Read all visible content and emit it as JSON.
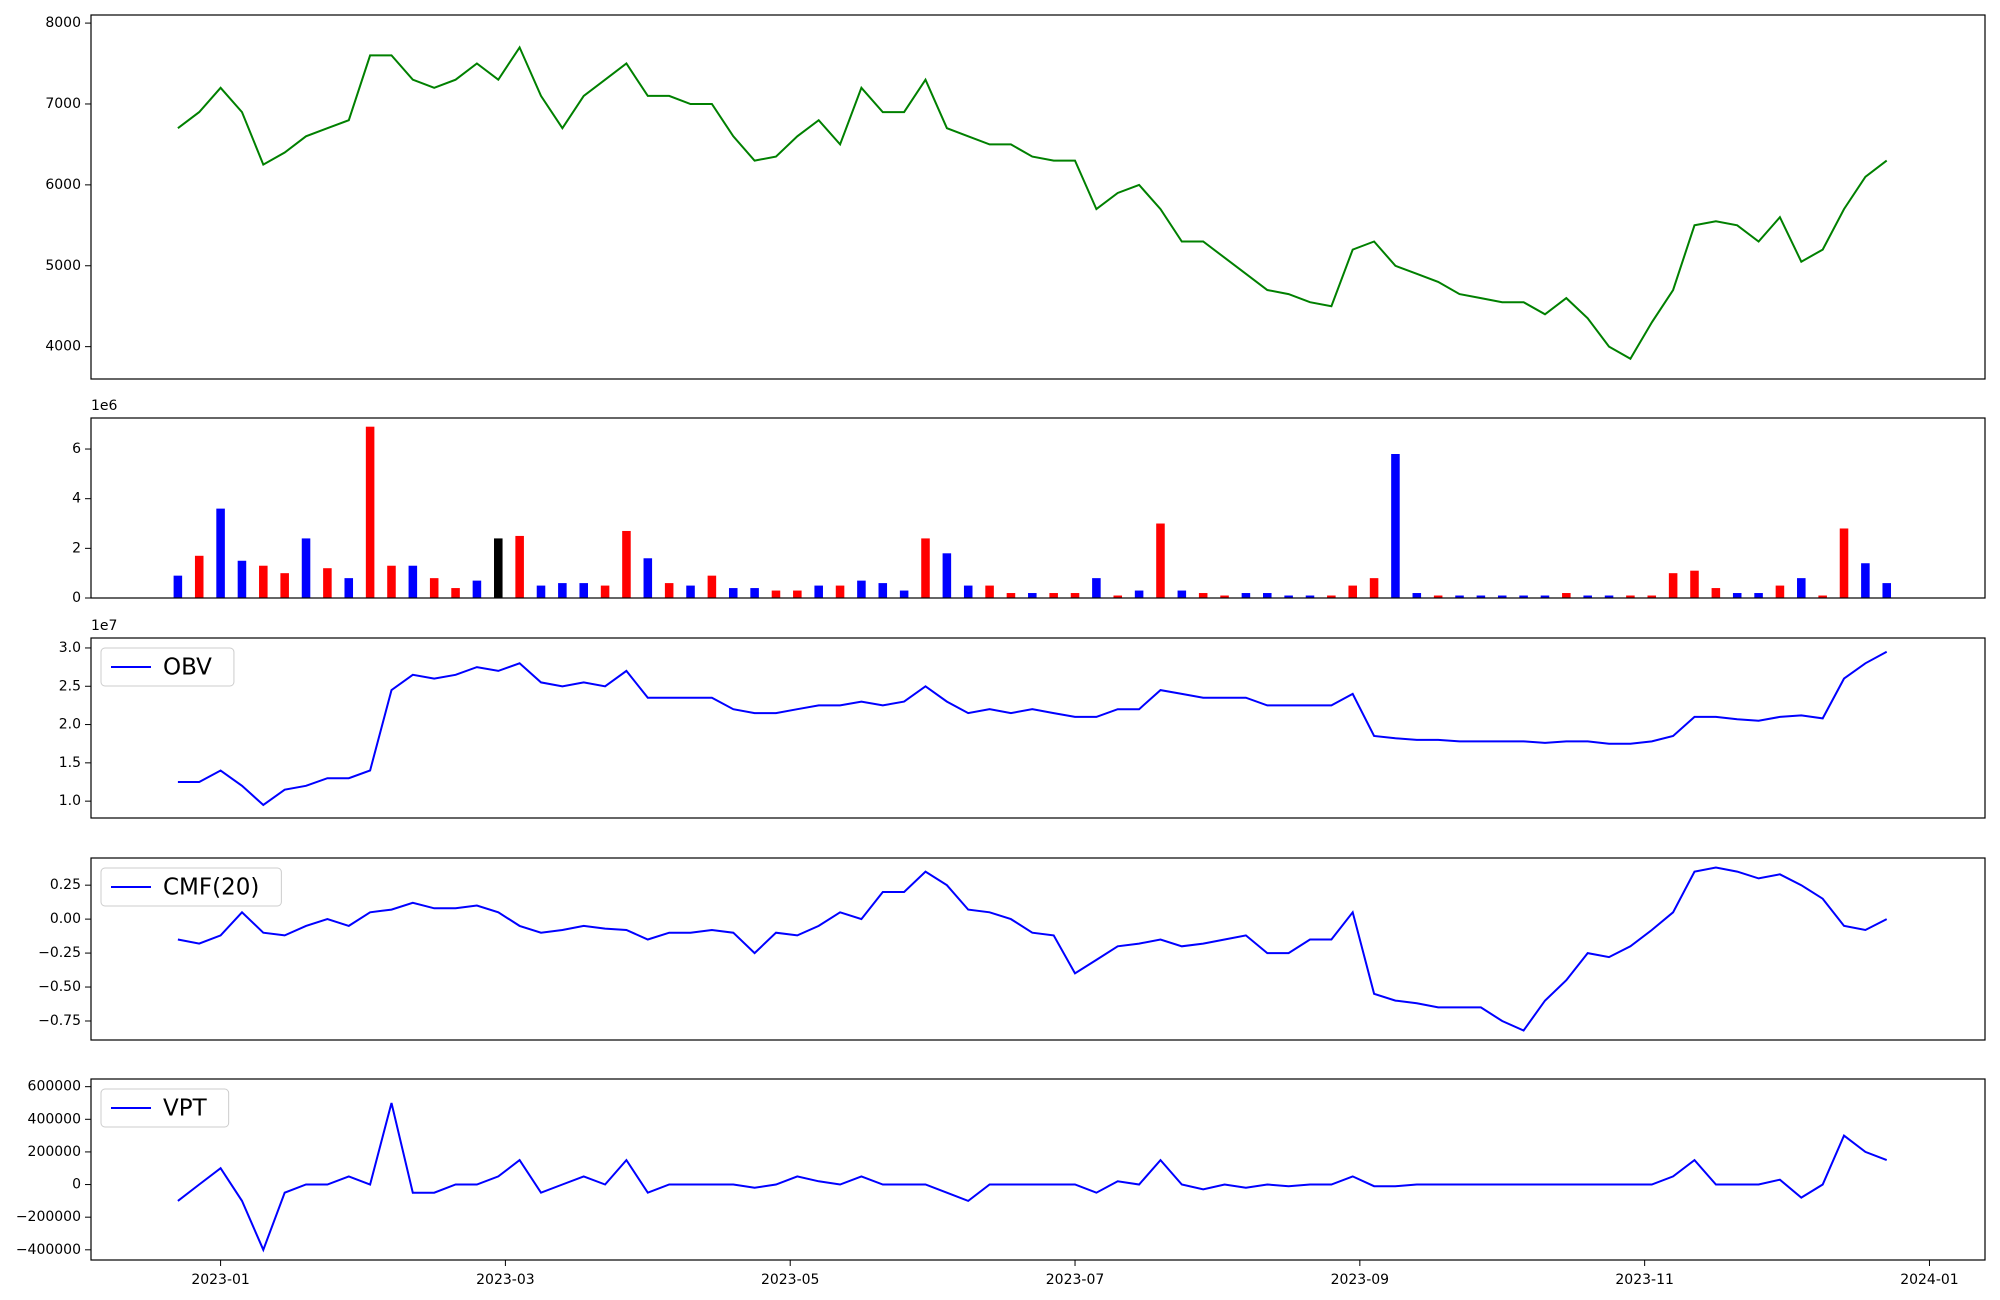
{
  "chart_data": [
    {
      "type": "line",
      "color": "green",
      "x": [
        -0.3,
        -0.15,
        0,
        0.15,
        0.3,
        0.45,
        0.6,
        0.75,
        0.9,
        1.05,
        1.2,
        1.35,
        1.5,
        1.65,
        1.8,
        1.95,
        2.1,
        2.25,
        2.4,
        2.55,
        2.7,
        2.85,
        3,
        3.15,
        3.3,
        3.45,
        3.6,
        3.75,
        3.9,
        4.05,
        4.2,
        4.35,
        4.5,
        4.65,
        4.8,
        4.95,
        5.1,
        5.25,
        5.4,
        5.55,
        5.7,
        5.85,
        6,
        6.15,
        6.3,
        6.45,
        6.6,
        6.75,
        6.9,
        7.05,
        7.2,
        7.35,
        7.5,
        7.65,
        7.8,
        7.95,
        8.1,
        8.25,
        8.4,
        8.55,
        8.7,
        8.85,
        9,
        9.15,
        9.3,
        9.45,
        9.6,
        9.75,
        9.9,
        10.05,
        10.2,
        10.35,
        10.5,
        10.65,
        10.8,
        10.95,
        11.1,
        11.25,
        11.4,
        11.55,
        11.7
      ],
      "values": [
        6700,
        6900,
        7200,
        6900,
        6250,
        6400,
        6600,
        6700,
        6800,
        7600,
        7600,
        7300,
        7200,
        7300,
        7500,
        7300,
        7700,
        7100,
        6700,
        7100,
        7300,
        7500,
        7100,
        7100,
        7000,
        7000,
        6600,
        6300,
        6350,
        6600,
        6800,
        6500,
        7200,
        6900,
        6900,
        7300,
        6700,
        6600,
        6500,
        6500,
        6350,
        6300,
        6300,
        5700,
        5900,
        6000,
        5700,
        5300,
        5300,
        5100,
        4900,
        4700,
        4650,
        4550,
        4500,
        5200,
        5300,
        5000,
        4900,
        4800,
        4650,
        4600,
        4550,
        4550,
        4400,
        4600,
        4350,
        4000,
        3850,
        4300,
        4700,
        5500,
        5550,
        5500,
        5300,
        5600,
        5050,
        5200,
        5700,
        6100,
        6300
      ],
      "xlim": [
        -0.91,
        12.39
      ],
      "ylim": [
        3600,
        8100
      ],
      "yticks": [
        4000,
        5000,
        6000,
        7000,
        8000
      ]
    },
    {
      "type": "bar",
      "offset_label": "1e6",
      "x": [
        -0.3,
        -0.15,
        0,
        0.15,
        0.3,
        0.45,
        0.6,
        0.75,
        0.9,
        1.05,
        1.2,
        1.35,
        1.5,
        1.65,
        1.8,
        1.95,
        2.1,
        2.25,
        2.4,
        2.55,
        2.7,
        2.85,
        3,
        3.15,
        3.3,
        3.45,
        3.6,
        3.75,
        3.9,
        4.05,
        4.2,
        4.35,
        4.5,
        4.65,
        4.8,
        4.95,
        5.1,
        5.25,
        5.4,
        5.55,
        5.7,
        5.85,
        6,
        6.15,
        6.3,
        6.45,
        6.6,
        6.75,
        6.9,
        7.05,
        7.2,
        7.35,
        7.5,
        7.65,
        7.8,
        7.95,
        8.1,
        8.25,
        8.4,
        8.55,
        8.7,
        8.85,
        9,
        9.15,
        9.3,
        9.45,
        9.6,
        9.75,
        9.9,
        10.05,
        10.2,
        10.35,
        10.5,
        10.65,
        10.8,
        10.95,
        11.1,
        11.25,
        11.4,
        11.55,
        11.7
      ],
      "values": [
        0.9,
        1.7,
        3.6,
        1.5,
        1.3,
        1.0,
        2.4,
        1.2,
        0.8,
        6.9,
        1.3,
        1.3,
        0.8,
        0.4,
        0.7,
        2.4,
        2.5,
        0.5,
        0.6,
        0.6,
        0.5,
        2.7,
        1.6,
        0.6,
        0.5,
        0.9,
        0.4,
        0.4,
        0.3,
        0.3,
        0.5,
        0.5,
        0.7,
        0.6,
        0.3,
        2.4,
        1.8,
        0.5,
        0.5,
        0.2,
        0.2,
        0.2,
        0.2,
        0.8,
        0.1,
        0.3,
        3.0,
        0.3,
        0.2,
        0.1,
        0.2,
        0.2,
        0.1,
        0.1,
        0.1,
        0.5,
        0.8,
        5.8,
        0.2,
        0.1,
        0.1,
        0.1,
        0.1,
        0.1,
        0.1,
        0.2,
        0.1,
        0.1,
        0.1,
        0.1,
        1.0,
        1.1,
        0.4,
        0.2,
        0.2,
        0.5,
        0.8,
        0.1,
        2.8,
        1.4,
        0.6
      ],
      "colors": [
        "blue",
        "red",
        "blue",
        "blue",
        "red",
        "red",
        "blue",
        "red",
        "blue",
        "red",
        "red",
        "blue",
        "red",
        "red",
        "blue",
        "black",
        "red",
        "blue",
        "blue",
        "blue",
        "red",
        "red",
        "blue",
        "red",
        "blue",
        "red",
        "blue",
        "blue",
        "red",
        "red",
        "blue",
        "red",
        "blue",
        "blue",
        "blue",
        "red",
        "blue",
        "blue",
        "red",
        "red",
        "blue",
        "red",
        "red",
        "blue",
        "red",
        "blue",
        "red",
        "blue",
        "red",
        "red",
        "blue",
        "blue",
        "blue",
        "blue",
        "red",
        "red",
        "red",
        "blue",
        "blue",
        "red",
        "blue",
        "blue",
        "blue",
        "blue",
        "blue",
        "red",
        "blue",
        "blue",
        "red",
        "red",
        "red",
        "red",
        "red",
        "blue",
        "blue",
        "red",
        "blue",
        "red",
        "red",
        "blue",
        "blue"
      ],
      "xlim": [
        -0.91,
        12.39
      ],
      "ylim": [
        0,
        7.25
      ],
      "yticks": [
        0,
        2,
        4,
        6
      ]
    },
    {
      "type": "line",
      "offset_label": "1e7",
      "legend": "upper left",
      "x": [
        -0.3,
        -0.15,
        0,
        0.15,
        0.3,
        0.45,
        0.6,
        0.75,
        0.9,
        1.05,
        1.2,
        1.35,
        1.5,
        1.65,
        1.8,
        1.95,
        2.1,
        2.25,
        2.4,
        2.55,
        2.7,
        2.85,
        3,
        3.15,
        3.3,
        3.45,
        3.6,
        3.75,
        3.9,
        4.05,
        4.2,
        4.35,
        4.5,
        4.65,
        4.8,
        4.95,
        5.1,
        5.25,
        5.4,
        5.55,
        5.7,
        5.85,
        6,
        6.15,
        6.3,
        6.45,
        6.6,
        6.75,
        6.9,
        7.05,
        7.2,
        7.35,
        7.5,
        7.65,
        7.8,
        7.95,
        8.1,
        8.25,
        8.4,
        8.55,
        8.7,
        8.85,
        9,
        9.15,
        9.3,
        9.45,
        9.6,
        9.75,
        9.9,
        10.05,
        10.2,
        10.35,
        10.5,
        10.65,
        10.8,
        10.95,
        11.1,
        11.25,
        11.4,
        11.55,
        11.7
      ],
      "series": [
        {
          "name": "OBV",
          "color": "blue",
          "values": [
            1.25,
            1.25,
            1.4,
            1.2,
            0.95,
            1.15,
            1.2,
            1.3,
            1.3,
            1.4,
            2.45,
            2.65,
            2.6,
            2.65,
            2.75,
            2.7,
            2.8,
            2.55,
            2.5,
            2.55,
            2.5,
            2.7,
            2.35,
            2.35,
            2.35,
            2.35,
            2.2,
            2.15,
            2.15,
            2.2,
            2.25,
            2.25,
            2.3,
            2.25,
            2.3,
            2.5,
            2.3,
            2.15,
            2.2,
            2.15,
            2.2,
            2.15,
            2.1,
            2.1,
            2.2,
            2.2,
            2.45,
            2.4,
            2.35,
            2.35,
            2.35,
            2.25,
            2.25,
            2.25,
            2.25,
            2.4,
            1.85,
            1.82,
            1.8,
            1.8,
            1.78,
            1.78,
            1.78,
            1.78,
            1.76,
            1.78,
            1.78,
            1.75,
            1.75,
            1.78,
            1.85,
            2.1,
            2.1,
            2.07,
            2.05,
            2.1,
            2.12,
            2.08,
            2.6,
            2.8,
            2.95
          ]
        }
      ],
      "xlim": [
        -0.91,
        12.39
      ],
      "ylim": [
        0.78,
        3.13
      ],
      "yticks": [
        {
          "value": 1,
          "label": "1.0"
        },
        1.5,
        {
          "value": 2,
          "label": "2.0"
        },
        2.5,
        {
          "value": 3,
          "label": "3.0"
        }
      ]
    },
    {
      "type": "line",
      "legend": "upper left",
      "x": [
        -0.3,
        -0.15,
        0,
        0.15,
        0.3,
        0.45,
        0.6,
        0.75,
        0.9,
        1.05,
        1.2,
        1.35,
        1.5,
        1.65,
        1.8,
        1.95,
        2.1,
        2.25,
        2.4,
        2.55,
        2.7,
        2.85,
        3,
        3.15,
        3.3,
        3.45,
        3.6,
        3.75,
        3.9,
        4.05,
        4.2,
        4.35,
        4.5,
        4.65,
        4.8,
        4.95,
        5.1,
        5.25,
        5.4,
        5.55,
        5.7,
        5.85,
        6,
        6.15,
        6.3,
        6.45,
        6.6,
        6.75,
        6.9,
        7.05,
        7.2,
        7.35,
        7.5,
        7.65,
        7.8,
        7.95,
        8.1,
        8.25,
        8.4,
        8.55,
        8.7,
        8.85,
        9,
        9.15,
        9.3,
        9.45,
        9.6,
        9.75,
        9.9,
        10.05,
        10.2,
        10.35,
        10.5,
        10.65,
        10.8,
        10.95,
        11.1,
        11.25,
        11.4,
        11.55,
        11.7
      ],
      "series": [
        {
          "name": "CMF(20)",
          "color": "blue",
          "values": [
            -0.15,
            -0.18,
            -0.12,
            0.05,
            -0.1,
            -0.12,
            -0.05,
            0,
            -0.05,
            0.05,
            0.07,
            0.12,
            0.08,
            0.08,
            0.1,
            0.05,
            -0.05,
            -0.1,
            -0.08,
            -0.05,
            -0.07,
            -0.08,
            -0.15,
            -0.1,
            -0.1,
            -0.08,
            -0.1,
            -0.25,
            -0.1,
            -0.12,
            -0.05,
            0.05,
            0,
            0.2,
            0.2,
            0.35,
            0.25,
            0.07,
            0.05,
            0,
            -0.1,
            -0.12,
            -0.4,
            -0.3,
            -0.2,
            -0.18,
            -0.15,
            -0.2,
            -0.18,
            -0.15,
            -0.12,
            -0.25,
            -0.25,
            -0.15,
            -0.15,
            0.05,
            -0.55,
            -0.6,
            -0.62,
            -0.65,
            -0.65,
            -0.65,
            -0.75,
            -0.82,
            -0.6,
            -0.45,
            -0.25,
            -0.28,
            -0.2,
            -0.08,
            0.05,
            0.35,
            0.38,
            0.35,
            0.3,
            0.33,
            0.25,
            0.15,
            -0.05,
            -0.08,
            0
          ]
        }
      ],
      "xlim": [
        -0.91,
        12.39
      ],
      "ylim": [
        -0.89,
        0.45
      ],
      "yticks": [
        {
          "value": -0.75,
          "label": "−0.75"
        },
        {
          "value": -0.5,
          "label": "−0.50"
        },
        {
          "value": -0.25,
          "label": "−0.25"
        },
        {
          "value": 0,
          "label": "0.00"
        },
        0.25
      ]
    },
    {
      "type": "line",
      "legend": "upper left",
      "x": [
        -0.3,
        -0.15,
        0,
        0.15,
        0.3,
        0.45,
        0.6,
        0.75,
        0.9,
        1.05,
        1.2,
        1.35,
        1.5,
        1.65,
        1.8,
        1.95,
        2.1,
        2.25,
        2.4,
        2.55,
        2.7,
        2.85,
        3,
        3.15,
        3.3,
        3.45,
        3.6,
        3.75,
        3.9,
        4.05,
        4.2,
        4.35,
        4.5,
        4.65,
        4.8,
        4.95,
        5.1,
        5.25,
        5.4,
        5.55,
        5.7,
        5.85,
        6,
        6.15,
        6.3,
        6.45,
        6.6,
        6.75,
        6.9,
        7.05,
        7.2,
        7.35,
        7.5,
        7.65,
        7.8,
        7.95,
        8.1,
        8.25,
        8.4,
        8.55,
        8.7,
        8.85,
        9,
        9.15,
        9.3,
        9.45,
        9.6,
        9.75,
        9.9,
        10.05,
        10.2,
        10.35,
        10.5,
        10.65,
        10.8,
        10.95,
        11.1,
        11.25,
        11.4,
        11.55,
        11.7
      ],
      "series": [
        {
          "name": "VPT",
          "color": "blue",
          "values": [
            -100000,
            0,
            100000,
            -100000,
            -400000,
            -50000,
            0,
            0,
            50000,
            0,
            500000,
            -50000,
            -50000,
            0,
            0,
            50000,
            150000,
            -50000,
            0,
            50000,
            0,
            150000,
            -50000,
            0,
            0,
            0,
            0,
            -20000,
            0,
            50000,
            20000,
            0,
            50000,
            0,
            0,
            0,
            -50000,
            -100000,
            0,
            0,
            0,
            0,
            0,
            -50000,
            20000,
            0,
            150000,
            0,
            -30000,
            0,
            -20000,
            0,
            -10000,
            0,
            0,
            50000,
            -10000,
            -10000,
            0,
            0,
            0,
            0,
            0,
            0,
            0,
            0,
            0,
            0,
            0,
            0,
            50000,
            150000,
            0,
            0,
            0,
            30000,
            -80000,
            0,
            300000,
            200000,
            150000
          ]
        }
      ],
      "xlim": [
        -0.91,
        12.39
      ],
      "ylim": [
        -462500,
        647000
      ],
      "yticks": [
        {
          "value": -400000,
          "label": "−400000"
        },
        {
          "value": -200000,
          "label": "−200000"
        },
        0,
        200000,
        400000,
        600000
      ],
      "xticks": [
        {
          "value": 0,
          "label": "2023-01"
        },
        {
          "value": 2,
          "label": "2023-03"
        },
        {
          "value": 4,
          "label": "2023-05"
        },
        {
          "value": 6,
          "label": "2023-07"
        },
        {
          "value": 8,
          "label": "2023-09"
        },
        {
          "value": 10,
          "label": "2023-11"
        },
        {
          "value": 12,
          "label": "2024-01"
        }
      ]
    }
  ]
}
